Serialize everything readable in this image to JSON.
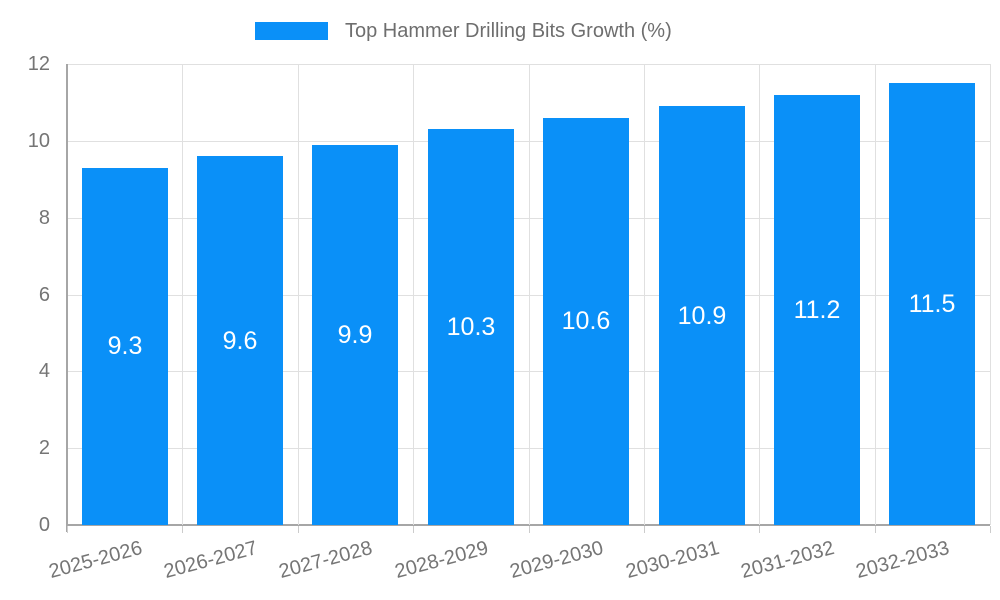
{
  "legend": {
    "label": "Top Hammer Drilling Bits Growth (%)",
    "swatch_color": "#0a90f8"
  },
  "chart_data": {
    "type": "bar",
    "title": "Top Hammer Drilling Bits Growth (%)",
    "categories": [
      "2025-2026",
      "2026-2027",
      "2027-2028",
      "2028-2029",
      "2029-2030",
      "2030-2031",
      "2031-2032",
      "2032-2033"
    ],
    "series": [
      {
        "name": "Top Hammer Drilling Bits Growth (%)",
        "values": [
          9.3,
          9.6,
          9.9,
          10.3,
          10.6,
          10.9,
          11.2,
          11.5
        ],
        "color": "#0a90f8"
      }
    ],
    "bar_value_labels": [
      "9.3",
      "9.6",
      "9.9",
      "10.3",
      "10.6",
      "10.9",
      "11.2",
      "11.5"
    ],
    "xlabel": "",
    "ylabel": "",
    "y_ticks": [
      0,
      2,
      4,
      6,
      8,
      10,
      12
    ],
    "ylim": [
      0,
      12
    ],
    "grid": true,
    "legend_position": "top",
    "colors": {
      "bar": "#0a90f8",
      "value_label": "#ffffff",
      "axis_text": "#757575",
      "gridline": "#e0e0e0",
      "axis_line": "#a6a6a6"
    }
  }
}
